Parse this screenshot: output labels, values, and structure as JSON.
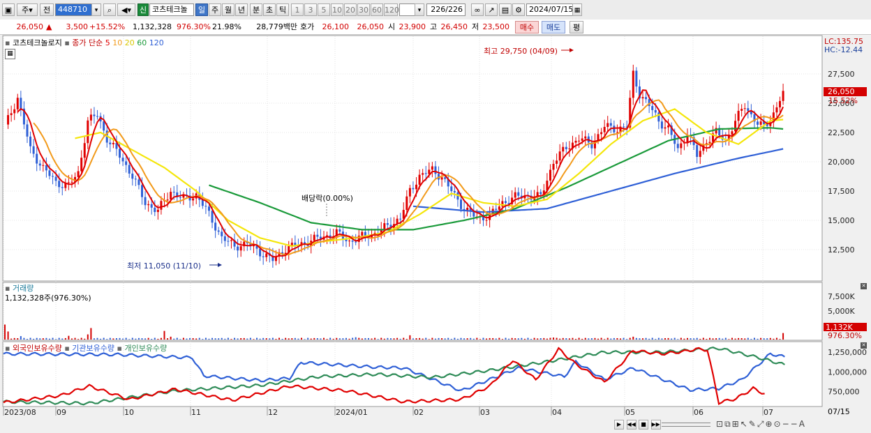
{
  "toolbar": {
    "type": "주",
    "mode": "전",
    "code": "448710",
    "name_badge": "신",
    "name": "코츠테크놀",
    "periods": [
      "일",
      "주",
      "월",
      "년",
      "분",
      "초",
      "틱"
    ],
    "active_period": "일",
    "minutes": [
      "1",
      "3",
      "5",
      "10",
      "20",
      "30",
      "60",
      "120"
    ],
    "count": "226/226",
    "date": "2024/07/15"
  },
  "quote": {
    "price": "26,050",
    "arrow": "▲",
    "change": "3,500",
    "change_pct": "+15.52%",
    "volume": "1,132,328",
    "vol_ratio": "976.30%",
    "turnover": "21.98%",
    "amount": "28,779백만",
    "ask_label": "호가",
    "ask": "26,100",
    "bid": "26,050",
    "open_label": "시",
    "open": "23,900",
    "high_label": "고",
    "high": "26,450",
    "low_label": "저",
    "low": "23,500",
    "buy": "매수",
    "sell": "매도",
    "eval": "평"
  },
  "price_panel": {
    "name": "코츠테크놀로지",
    "ma_label": "종가 단순",
    "ma_periods": [
      "5",
      "10",
      "20",
      "60",
      "120"
    ],
    "ma_colors": [
      "#e00000",
      "#f29a1a",
      "#f4e60a",
      "#1a9a3a",
      "#2e5fd6"
    ],
    "lc": "LC:135.75",
    "hc": "HC:-12.44",
    "high_annot": "최고 29,750 (04/09)",
    "low_annot": "최저 11,050 (11/10)",
    "dividend": "배당락(0.00%)",
    "last_tag": "26,050",
    "last_pct": "15.52%",
    "yticks": [
      "27,500",
      "25,000",
      "22,500",
      "20,000",
      "17,500",
      "15,000",
      "12,500"
    ]
  },
  "volume_panel": {
    "title": "거래량",
    "info": "1,132,328주(976.30%)",
    "yticks": [
      "7,500K",
      "5,000K",
      "2,500K"
    ],
    "last_tag": "1,132K",
    "last_pct": "976.30%"
  },
  "holder_panel": {
    "series": [
      {
        "name": "외국인보유수량",
        "color": "#e00000"
      },
      {
        "name": "기관보유수량",
        "color": "#2e5fd6"
      },
      {
        "name": "개인보유수량",
        "color": "#2e8b57"
      }
    ],
    "yticks": [
      "1,250,000",
      "1,000,000",
      "750,000"
    ]
  },
  "xaxis": {
    "labels": [
      "2023/08",
      "09",
      "10",
      "11",
      "12",
      "2024/01",
      "02",
      "03",
      "04",
      "05",
      "06",
      "07"
    ],
    "right_label": "07/15"
  },
  "chart_data": {
    "type": "line",
    "title": "코츠테크놀로지",
    "ylim": [
      10500,
      30500
    ],
    "price_close_series": [
      [
        0,
        23000
      ],
      [
        4,
        25500
      ],
      [
        8,
        21000
      ],
      [
        12,
        19500
      ],
      [
        16,
        18200
      ],
      [
        20,
        18000
      ],
      [
        23,
        19000
      ],
      [
        26,
        23500
      ],
      [
        29,
        24000
      ],
      [
        32,
        22000
      ],
      [
        36,
        20500
      ],
      [
        40,
        18800
      ],
      [
        44,
        16500
      ],
      [
        48,
        15800
      ],
      [
        52,
        17500
      ],
      [
        56,
        16800
      ],
      [
        60,
        17200
      ],
      [
        64,
        15500
      ],
      [
        68,
        13500
      ],
      [
        72,
        12800
      ],
      [
        76,
        13000
      ],
      [
        80,
        12300
      ],
      [
        84,
        11600
      ],
      [
        88,
        12600
      ],
      [
        92,
        12900
      ],
      [
        96,
        13300
      ],
      [
        100,
        13600
      ],
      [
        104,
        13900
      ],
      [
        108,
        13200
      ],
      [
        112,
        13600
      ],
      [
        116,
        13900
      ],
      [
        120,
        14500
      ],
      [
        124,
        15200
      ],
      [
        127,
        17500
      ],
      [
        130,
        18800
      ],
      [
        134,
        19300
      ],
      [
        137,
        18700
      ],
      [
        140,
        17500
      ],
      [
        144,
        16000
      ],
      [
        148,
        15200
      ],
      [
        152,
        15400
      ],
      [
        156,
        16500
      ],
      [
        160,
        17000
      ],
      [
        164,
        17100
      ],
      [
        168,
        17000
      ],
      [
        172,
        20000
      ],
      [
        176,
        21200
      ],
      [
        180,
        22000
      ],
      [
        184,
        21500
      ],
      [
        188,
        23000
      ],
      [
        192,
        22800
      ],
      [
        195,
        23000
      ],
      [
        197,
        27500
      ],
      [
        199,
        25800
      ],
      [
        202,
        24800
      ],
      [
        205,
        23500
      ],
      [
        208,
        22800
      ],
      [
        211,
        21000
      ],
      [
        214,
        22500
      ],
      [
        217,
        20500
      ],
      [
        220,
        21800
      ],
      [
        223,
        22500
      ],
      [
        226,
        21800
      ],
      [
        229,
        23500
      ],
      [
        232,
        24800
      ],
      [
        234,
        24000
      ],
      [
        236,
        23300
      ],
      [
        238,
        22900
      ],
      [
        240,
        23600
      ],
      [
        242,
        24700
      ],
      [
        244,
        26050
      ]
    ],
    "series": [
      {
        "name": "5",
        "values_ref": "ma5"
      },
      {
        "name": "10",
        "values_ref": "ma10"
      },
      {
        "name": "20",
        "values_ref": "ma20"
      },
      {
        "name": "60",
        "values_ref": "ma60"
      },
      {
        "name": "120",
        "values_ref": "ma120"
      }
    ],
    "ma20": [
      [
        22,
        22000
      ],
      [
        30,
        22500
      ],
      [
        40,
        21000
      ],
      [
        50,
        19500
      ],
      [
        60,
        17500
      ],
      [
        70,
        15000
      ],
      [
        80,
        13500
      ],
      [
        90,
        12800
      ],
      [
        100,
        13200
      ],
      [
        110,
        13500
      ],
      [
        120,
        14000
      ],
      [
        130,
        15500
      ],
      [
        140,
        17300
      ],
      [
        150,
        16500
      ],
      [
        160,
        16200
      ],
      [
        170,
        16800
      ],
      [
        180,
        19000
      ],
      [
        190,
        21500
      ],
      [
        200,
        23500
      ],
      [
        210,
        24500
      ],
      [
        220,
        22500
      ],
      [
        230,
        21500
      ],
      [
        240,
        23500
      ],
      [
        244,
        23600
      ]
    ],
    "ma60": [
      [
        64,
        18000
      ],
      [
        80,
        16500
      ],
      [
        96,
        14800
      ],
      [
        112,
        14200
      ],
      [
        128,
        14200
      ],
      [
        144,
        15000
      ],
      [
        160,
        16000
      ],
      [
        176,
        17800
      ],
      [
        192,
        19800
      ],
      [
        208,
        21800
      ],
      [
        224,
        22800
      ],
      [
        240,
        22900
      ],
      [
        244,
        22800
      ]
    ],
    "ma120": [
      [
        128,
        16200
      ],
      [
        150,
        15700
      ],
      [
        170,
        16000
      ],
      [
        190,
        17500
      ],
      [
        210,
        19000
      ],
      [
        230,
        20300
      ],
      [
        244,
        21100
      ]
    ],
    "volume_thousands": [
      [
        0,
        2600
      ],
      [
        1,
        1400
      ],
      [
        5,
        600
      ],
      [
        20,
        650
      ],
      [
        26,
        900
      ],
      [
        27,
        2000
      ],
      [
        50,
        1500
      ],
      [
        52,
        500
      ],
      [
        84,
        300
      ],
      [
        110,
        400
      ],
      [
        127,
        750
      ],
      [
        150,
        300
      ],
      [
        172,
        350
      ],
      [
        197,
        500
      ],
      [
        244,
        1132
      ]
    ],
    "holders": {
      "foreign": [
        [
          0,
          610000
        ],
        [
          20,
          700000
        ],
        [
          30,
          820000
        ],
        [
          44,
          650000
        ],
        [
          60,
          780000
        ],
        [
          80,
          640000
        ],
        [
          100,
          820000
        ],
        [
          120,
          760000
        ],
        [
          140,
          620000
        ],
        [
          160,
          650000
        ],
        [
          170,
          820000
        ],
        [
          178,
          1150000
        ],
        [
          186,
          900000
        ],
        [
          194,
          1290000
        ],
        [
          200,
          1100000
        ],
        [
          210,
          870000
        ],
        [
          220,
          1270000
        ],
        [
          230,
          1230000
        ],
        [
          238,
          1260000
        ],
        [
          242,
          1290000
        ],
        [
          246,
          1280000
        ],
        [
          250,
          610000
        ],
        [
          256,
          660000
        ],
        [
          262,
          790000
        ],
        [
          266,
          720000
        ]
      ],
      "institution": [
        [
          0,
          1230000
        ],
        [
          40,
          1220000
        ],
        [
          66,
          1180000
        ],
        [
          70,
          950000
        ],
        [
          90,
          890000
        ],
        [
          100,
          920000
        ],
        [
          104,
          1120000
        ],
        [
          130,
          1060000
        ],
        [
          140,
          1050000
        ],
        [
          160,
          760000
        ],
        [
          180,
          1050000
        ],
        [
          196,
          940000
        ],
        [
          200,
          1130000
        ],
        [
          210,
          900000
        ],
        [
          220,
          1050000
        ],
        [
          240,
          770000
        ],
        [
          250,
          790000
        ],
        [
          258,
          900000
        ],
        [
          268,
          1230000
        ],
        [
          273,
          1190000
        ]
      ],
      "individual": [
        [
          0,
          620000
        ],
        [
          30,
          600000
        ],
        [
          60,
          760000
        ],
        [
          90,
          830000
        ],
        [
          110,
          940000
        ],
        [
          130,
          970000
        ],
        [
          150,
          930000
        ],
        [
          170,
          1020000
        ],
        [
          190,
          1130000
        ],
        [
          210,
          1250000
        ],
        [
          230,
          1250000
        ],
        [
          250,
          1300000
        ],
        [
          264,
          1180000
        ],
        [
          273,
          1090000
        ]
      ]
    }
  }
}
